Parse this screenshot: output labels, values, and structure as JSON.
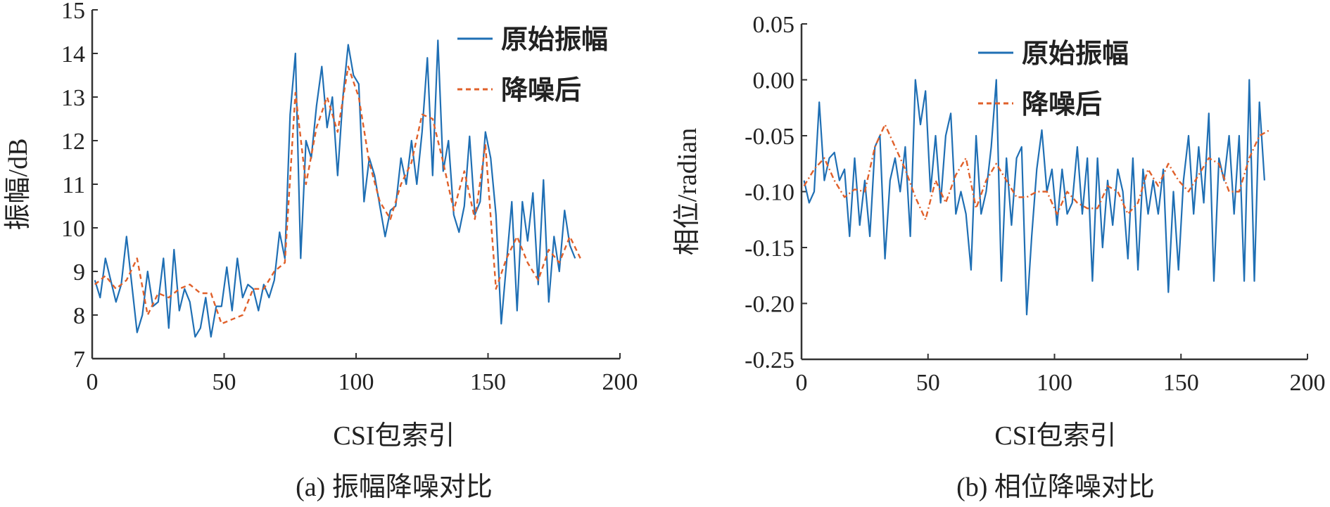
{
  "colors": {
    "raw": "#1f6fb4",
    "denoised": "#e0602a",
    "axis": "#333333"
  },
  "chart_data": [
    {
      "type": "line",
      "caption": "(a) 振幅降噪对比",
      "xlabel": "CSI包索引",
      "ylabel": "振幅/dB",
      "xlim": [
        0,
        200
      ],
      "ylim": [
        7,
        15
      ],
      "xticks": [
        "0",
        "50",
        "100",
        "150",
        "200"
      ],
      "yticks": [
        "7",
        "8",
        "9",
        "10",
        "11",
        "12",
        "13",
        "14",
        "15"
      ],
      "legend": {
        "placement": "top-right",
        "entries": [
          "原始振幅",
          "降噪后"
        ]
      },
      "series": [
        {
          "name": "原始振幅",
          "style": "solid",
          "x_start": 1,
          "x_step": 2,
          "values": [
            8.8,
            8.4,
            9.3,
            8.8,
            8.3,
            8.7,
            9.8,
            8.7,
            7.6,
            8.0,
            9.0,
            8.2,
            8.3,
            9.3,
            7.7,
            9.5,
            8.1,
            8.6,
            8.3,
            7.5,
            7.7,
            8.4,
            7.5,
            8.2,
            8.2,
            9.1,
            8.1,
            9.3,
            8.4,
            8.7,
            8.6,
            8.1,
            8.7,
            8.4,
            8.8,
            9.9,
            9.3,
            12.6,
            14.0,
            9.3,
            12.0,
            11.6,
            12.8,
            13.7,
            12.3,
            13.0,
            11.2,
            13.0,
            14.2,
            13.5,
            13.3,
            10.6,
            11.6,
            11.2,
            10.5,
            9.8,
            10.4,
            10.5,
            11.6,
            11.0,
            12.0,
            11.0,
            12.2,
            13.9,
            11.2,
            14.3,
            11.3,
            12.0,
            10.3,
            9.9,
            10.5,
            12.1,
            10.3,
            10.6,
            12.2,
            11.6,
            10.3,
            7.8,
            9.2,
            10.6,
            8.1,
            10.6,
            9.7,
            10.8,
            8.7,
            11.1,
            8.3,
            9.8,
            9.0,
            10.4,
            9.6,
            9.3
          ]
        },
        {
          "name": "降噪后",
          "style": "dashed",
          "x_start": 1,
          "x_step": 4,
          "values": [
            8.7,
            8.9,
            8.6,
            8.8,
            9.3,
            8.0,
            8.5,
            8.4,
            8.6,
            8.7,
            8.5,
            8.5,
            7.8,
            7.9,
            8.0,
            8.6,
            8.6,
            9.0,
            9.2,
            13.1,
            11.0,
            12.3,
            13.0,
            12.2,
            13.7,
            13.0,
            11.5,
            10.6,
            10.2,
            11.0,
            11.5,
            12.6,
            12.5,
            11.5,
            10.4,
            11.3,
            10.2,
            11.9,
            8.6,
            9.3,
            9.8,
            9.2,
            8.8,
            9.5,
            9.2,
            9.8,
            9.3
          ]
        }
      ]
    },
    {
      "type": "line",
      "caption": "(b) 相位降噪对比",
      "xlabel": "CSI包索引",
      "ylabel": "相位/radian",
      "xlim": [
        0,
        200
      ],
      "ylim": [
        -0.25,
        0.05
      ],
      "xticks": [
        "0",
        "50",
        "100",
        "150",
        "200"
      ],
      "yticks": [
        "-0.25",
        "-0.20",
        "-0.15",
        "-0.10",
        "-0.05",
        "0.00",
        "0.05"
      ],
      "legend": {
        "placement": "top-right",
        "entries": [
          "原始振幅",
          "降噪后"
        ]
      },
      "series": [
        {
          "name": "原始振幅",
          "style": "solid",
          "x_start": 1,
          "x_step": 2,
          "values": [
            -0.09,
            -0.11,
            -0.1,
            -0.02,
            -0.09,
            -0.07,
            -0.065,
            -0.09,
            -0.08,
            -0.14,
            -0.07,
            -0.13,
            -0.09,
            -0.14,
            -0.06,
            -0.05,
            -0.16,
            -0.09,
            -0.07,
            -0.1,
            -0.06,
            -0.14,
            0.0,
            -0.04,
            -0.01,
            -0.1,
            -0.05,
            -0.11,
            -0.05,
            -0.03,
            -0.12,
            -0.1,
            -0.12,
            -0.17,
            -0.05,
            -0.12,
            -0.1,
            -0.06,
            0.0,
            -0.18,
            -0.07,
            -0.13,
            -0.07,
            -0.06,
            -0.21,
            -0.14,
            -0.08,
            -0.045,
            -0.1,
            -0.08,
            -0.13,
            -0.08,
            -0.12,
            -0.11,
            -0.06,
            -0.12,
            -0.07,
            -0.18,
            -0.07,
            -0.15,
            -0.09,
            -0.13,
            -0.08,
            -0.1,
            -0.16,
            -0.07,
            -0.17,
            -0.08,
            -0.12,
            -0.09,
            -0.12,
            -0.08,
            -0.19,
            -0.1,
            -0.17,
            -0.09,
            -0.05,
            -0.12,
            -0.06,
            -0.11,
            -0.03,
            -0.18,
            -0.07,
            -0.09,
            -0.05,
            -0.12,
            -0.05,
            -0.18,
            0.0,
            -0.18,
            -0.02,
            -0.09
          ]
        },
        {
          "name": "降噪后",
          "style": "dashed",
          "x_start": 1,
          "x_step": 4,
          "values": [
            -0.095,
            -0.08,
            -0.07,
            -0.09,
            -0.105,
            -0.098,
            -0.1,
            -0.06,
            -0.04,
            -0.06,
            -0.08,
            -0.105,
            -0.125,
            -0.09,
            -0.11,
            -0.085,
            -0.07,
            -0.115,
            -0.09,
            -0.075,
            -0.09,
            -0.105,
            -0.105,
            -0.1,
            -0.1,
            -0.12,
            -0.1,
            -0.11,
            -0.115,
            -0.115,
            -0.095,
            -0.1,
            -0.12,
            -0.11,
            -0.08,
            -0.095,
            -0.075,
            -0.09,
            -0.1,
            -0.085,
            -0.07,
            -0.075,
            -0.1,
            -0.1,
            -0.07,
            -0.05,
            -0.045
          ]
        }
      ]
    }
  ]
}
